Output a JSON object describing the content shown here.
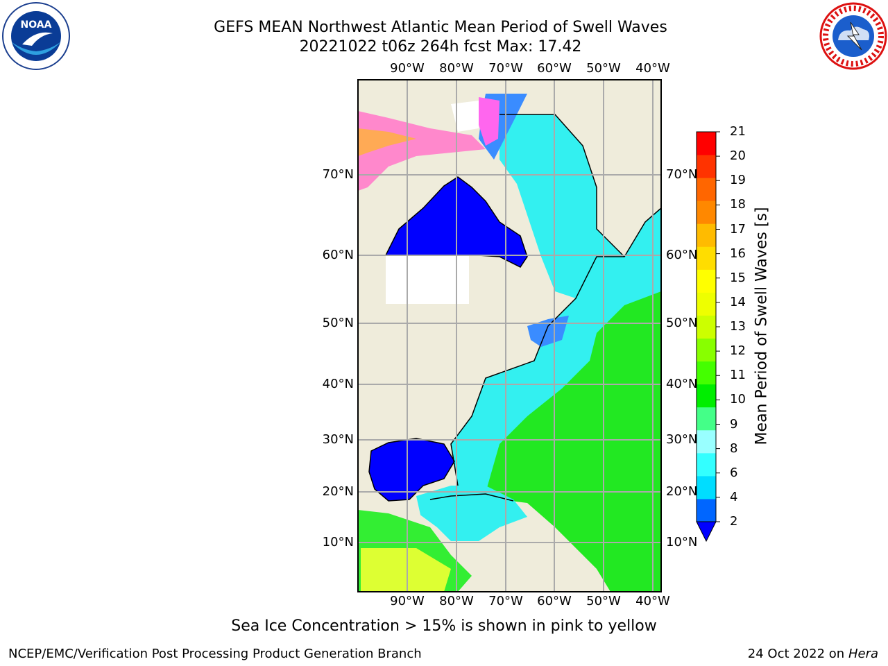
{
  "header": {
    "title_line1": "GEFS MEAN Northwest Atlantic Mean Period of Swell Waves",
    "title_line2": "20221022 t06z 264h fcst   Max: 17.42"
  },
  "map": {
    "lon_labels": [
      "90°W",
      "80°W",
      "70°W",
      "60°W",
      "50°W",
      "40°W"
    ],
    "lat_labels": [
      "10°N",
      "20°N",
      "30°N",
      "40°N",
      "50°N",
      "60°N",
      "70°N"
    ],
    "colors": {
      "land": "#efecdb",
      "ocean_low": "#0000ff",
      "ocean_mid": "#00ffff",
      "ocean_high": "#00ff00",
      "ice": "#ff55ee"
    }
  },
  "colorbar": {
    "title": "Mean Period of Swell Waves [s]",
    "ticks": [
      "2",
      "4",
      "6",
      "8",
      "9",
      "10",
      "11",
      "12",
      "13",
      "14",
      "15",
      "16",
      "17",
      "18",
      "19",
      "20",
      "21"
    ],
    "colors": [
      "#0066ff",
      "#00ddff",
      "#33ffff",
      "#99ffff",
      "#44ff88",
      "#00ee00",
      "#44ff00",
      "#88ff00",
      "#ccff00",
      "#eeff00",
      "#ffff00",
      "#ffdd00",
      "#ffbb00",
      "#ff8800",
      "#ff6600",
      "#ff3300",
      "#ff0000"
    ],
    "under_color": "#0000ff"
  },
  "footer": {
    "note": "Sea Ice Concentration > 15% is shown in pink to yellow",
    "credit": "NCEP/EMC/Verification Post Processing Product Generation Branch",
    "date_prefix": "24 Oct 2022 on ",
    "date_host": "Hera"
  },
  "logos": {
    "left_text": "NOAA",
    "right_text": "NATIONAL WEATHER SERVICE"
  }
}
